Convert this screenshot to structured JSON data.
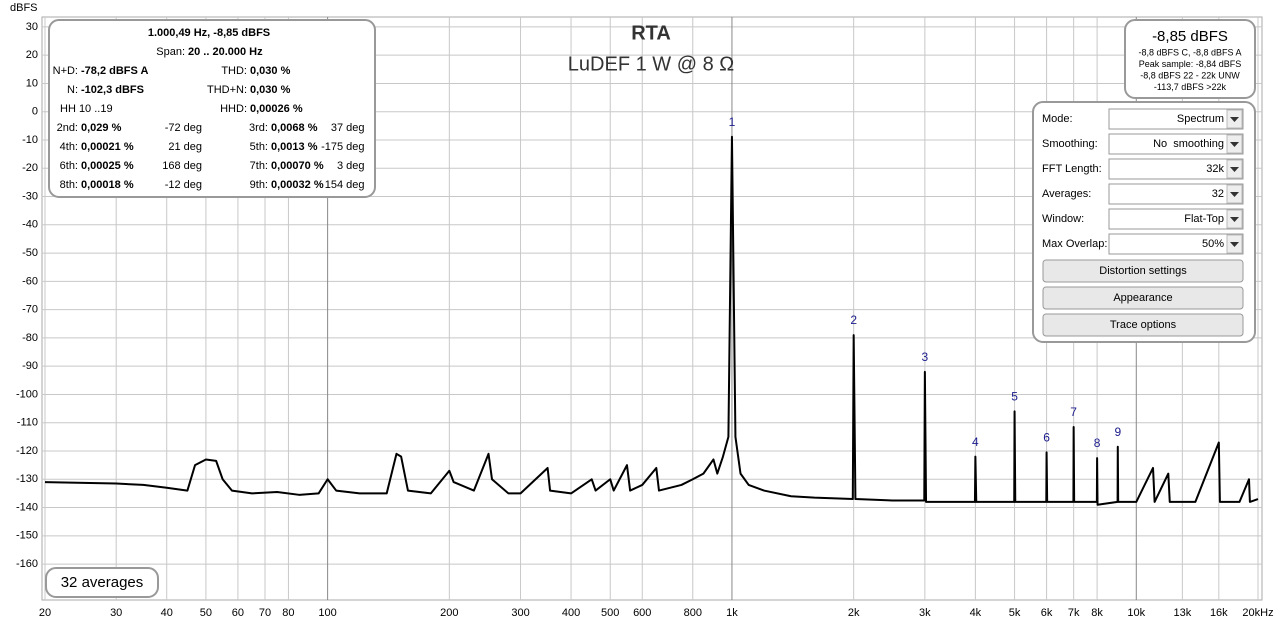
{
  "chart_data": {
    "type": "line",
    "title": "RTA",
    "subtitle": "LuDEF 1 W @ 8 Ω",
    "y_label": "dBFS",
    "log_x": true,
    "grid": true,
    "color": "#000000",
    "xlim": [
      20,
      20000
    ],
    "ylim": [
      -172.7,
      33.5
    ],
    "xticks": [
      {
        "value": 20,
        "label": "20"
      },
      {
        "value": 30,
        "label": "30"
      },
      {
        "value": 40,
        "label": "40"
      },
      {
        "value": 50,
        "label": "50"
      },
      {
        "value": 60,
        "label": "60"
      },
      {
        "value": 70,
        "label": "70"
      },
      {
        "value": 80,
        "label": "80"
      },
      {
        "value": 100,
        "label": "100"
      },
      {
        "value": 200,
        "label": "200"
      },
      {
        "value": 300,
        "label": "300"
      },
      {
        "value": 400,
        "label": "400"
      },
      {
        "value": 500,
        "label": "500"
      },
      {
        "value": 600,
        "label": "600"
      },
      {
        "value": 800,
        "label": "800"
      },
      {
        "value": 1000,
        "label": "1k"
      },
      {
        "value": 2000,
        "label": "2k"
      },
      {
        "value": 3000,
        "label": "3k"
      },
      {
        "value": 4000,
        "label": "4k"
      },
      {
        "value": 5000,
        "label": "5k"
      },
      {
        "value": 6000,
        "label": "6k"
      },
      {
        "value": 7000,
        "label": "7k"
      },
      {
        "value": 8000,
        "label": "8k"
      },
      {
        "value": 10000,
        "label": "10k"
      },
      {
        "value": 13000,
        "label": "13k"
      },
      {
        "value": 16000,
        "label": "16k"
      },
      {
        "value": 20000,
        "label": "20kHz"
      }
    ],
    "yticks": [
      30,
      20,
      10,
      0,
      -10,
      -20,
      -30,
      -40,
      -50,
      -60,
      -70,
      -80,
      -90,
      -100,
      -110,
      -120,
      -130,
      -140,
      -150,
      -160
    ],
    "x": [
      20,
      30,
      35,
      40,
      45,
      47,
      50,
      53,
      55,
      58,
      65,
      75,
      85,
      95,
      100,
      105,
      120,
      140,
      148,
      152,
      158,
      180,
      200,
      205,
      230,
      250,
      255,
      280,
      300,
      350,
      355,
      400,
      450,
      460,
      500,
      510,
      550,
      560,
      600,
      650,
      660,
      750,
      800,
      850,
      900,
      920,
      950,
      980,
      1000,
      1020,
      1050,
      1100,
      1200,
      1400,
      1600,
      1990,
      2000,
      2020,
      2500,
      2990,
      3000,
      3020,
      3500,
      3990,
      4000,
      4020,
      4500,
      4990,
      5000,
      5020,
      5990,
      6000,
      6020,
      6990,
      7000,
      7020,
      7990,
      8000,
      8020,
      8990,
      9000,
      9020,
      10000,
      11000,
      11100,
      12000,
      12100,
      14000,
      16000,
      16100,
      18000,
      19000,
      19100,
      20000
    ],
    "values": [
      -131,
      -131.5,
      -132,
      -133,
      -134,
      -125,
      -123,
      -123.5,
      -130,
      -134,
      -135,
      -134.5,
      -135.5,
      -135,
      -130,
      -134,
      -135,
      -135,
      -121,
      -122,
      -134,
      -135,
      -127,
      -131,
      -134,
      -121,
      -130,
      -135,
      -135,
      -126,
      -134,
      -135,
      -130,
      -134,
      -130,
      -134,
      -125,
      -134,
      -132,
      -126,
      -134,
      -132,
      -130,
      -128,
      -123,
      -128,
      -122,
      -115,
      -8.85,
      -115,
      -128,
      -132,
      -134,
      -136,
      -136.5,
      -137,
      -79,
      -137,
      -137.5,
      -137.5,
      -92,
      -138,
      -138,
      -138,
      -122,
      -138,
      -138,
      -138,
      -106,
      -138,
      -138,
      -120.5,
      -138,
      -138,
      -111.5,
      -138,
      -138,
      -122.5,
      -139,
      -138,
      -118.5,
      -138,
      -138,
      -126,
      -138,
      -128,
      -138,
      -138,
      -117,
      -138,
      -138,
      -130,
      -138,
      -137
    ],
    "annotations": [
      {
        "text": "1",
        "x": 1000,
        "y": -8.85
      },
      {
        "text": "2",
        "x": 2000,
        "y": -79
      },
      {
        "text": "3",
        "x": 3000,
        "y": -92
      },
      {
        "text": "4",
        "x": 4000,
        "y": -122
      },
      {
        "text": "5",
        "x": 5000,
        "y": -106
      },
      {
        "text": "6",
        "x": 6000,
        "y": -120.5
      },
      {
        "text": "7",
        "x": 7000,
        "y": -111.5
      },
      {
        "text": "8",
        "x": 8000,
        "y": -122.5
      },
      {
        "text": "9",
        "x": 9000,
        "y": -118.5
      }
    ]
  },
  "info_panel": {
    "header": "1.000,49 Hz, -8,85 dBFS",
    "span_label": "Span:",
    "span": "20 .. 20.000 Hz",
    "summary": [
      {
        "l1": "N+D:",
        "v1": "-78,2 dBFS A",
        "l2": "THD:",
        "v2": "0,030 %"
      },
      {
        "l1": "N:",
        "v1": "-102,3 dBFS",
        "l2": "THD+N:",
        "v2": "0,030 %"
      },
      {
        "l1": "HH 10 ..19",
        "l2": "HHD:",
        "v2": "0,00026 %"
      }
    ],
    "harmonics": [
      [
        {
          "label": "2nd:",
          "value": "0,029 %",
          "phase": "-72 deg"
        },
        {
          "label": "3rd:",
          "value": "0,0068 %",
          "phase": "37 deg"
        }
      ],
      [
        {
          "label": "4th:",
          "value": "0,00021 %",
          "phase": "21 deg"
        },
        {
          "label": "5th:",
          "value": "0,0013 %",
          "phase": "-175 deg"
        }
      ],
      [
        {
          "label": "6th:",
          "value": "0,00025 %",
          "phase": "168 deg"
        },
        {
          "label": "7th:",
          "value": "0,00070 %",
          "phase": "3 deg"
        }
      ],
      [
        {
          "label": "8th:",
          "value": "0,00018 %",
          "phase": "-12 deg"
        },
        {
          "label": "9th:",
          "value": "0,00032 %",
          "phase": "154 deg"
        }
      ]
    ]
  },
  "peak_panel": {
    "level": "-8,85 dBFS",
    "lines": [
      "-8,8 dBFS C, -8,8 dBFS A",
      "Peak sample: -8,84 dBFS",
      "-8,8 dBFS 22 - 22k UNW",
      "-113,7 dBFS >22k"
    ]
  },
  "controls": {
    "fields": [
      {
        "label": "Mode:",
        "value": "Spectrum"
      },
      {
        "label": "Smoothing:",
        "value": "No  smoothing"
      },
      {
        "label": "FFT Length:",
        "value": "32k"
      },
      {
        "label": "Averages:",
        "value": "32"
      },
      {
        "label": "Window:",
        "value": "Flat-Top"
      },
      {
        "label": "Max Overlap:",
        "value": "50%"
      }
    ],
    "buttons": [
      "Distortion settings",
      "Appearance",
      "Trace options"
    ]
  },
  "averages_badge": "32 averages"
}
